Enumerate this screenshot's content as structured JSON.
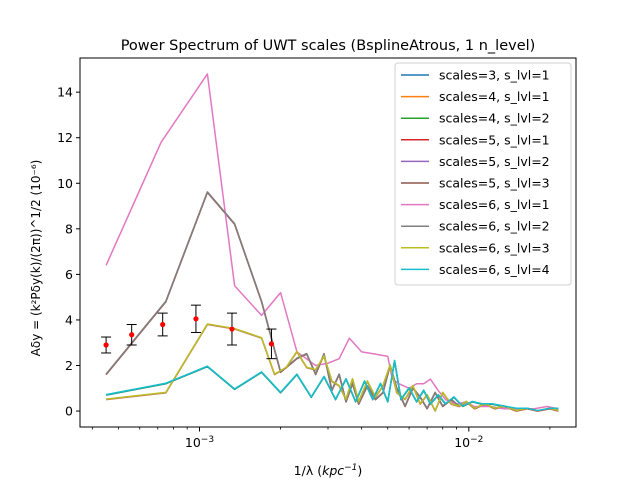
{
  "chart_data": {
    "type": "line",
    "title": "Power Spectrum of UWT scales (BsplineAtrous, 1 n_level)",
    "xlabel_main": "1/λ (",
    "xlabel_unit": "kpc",
    "xlabel_sup": "−1",
    "xlabel_close": ")",
    "ylabel": "Aδy = (k²Pδy(k)/(2π))^1/2 (10⁻⁶)",
    "xscale": "log",
    "xlim": [
      0.00036,
      0.025
    ],
    "ylim": [
      -0.7,
      15.5
    ],
    "yticks": [
      0,
      2,
      4,
      6,
      8,
      10,
      12,
      14
    ],
    "ytick_labels": [
      "0",
      "2",
      "4",
      "6",
      "8",
      "10",
      "12",
      "14"
    ],
    "xticks_major": [
      0.001,
      0.01
    ],
    "xtick_major_base": [
      "10",
      "10"
    ],
    "xtick_major_exp": [
      "−3",
      "−2"
    ],
    "xticks_minor": [
      0.0004,
      0.0005,
      0.0006,
      0.0007,
      0.0008,
      0.0009,
      0.002,
      0.003,
      0.004,
      0.005,
      0.006,
      0.007,
      0.008,
      0.009,
      0.02
    ],
    "legend_position": "top-right",
    "series": [
      {
        "name": "scales=3, s_lvl=1",
        "color": "#1f77b4",
        "group": "low"
      },
      {
        "name": "scales=4, s_lvl=1",
        "color": "#ff7f0e",
        "group": "mid"
      },
      {
        "name": "scales=4, s_lvl=2",
        "color": "#2ca02c",
        "group": "low"
      },
      {
        "name": "scales=5, s_lvl=1",
        "color": "#d62728",
        "group": "brown"
      },
      {
        "name": "scales=5, s_lvl=2",
        "color": "#9467bd",
        "group": "mid"
      },
      {
        "name": "scales=5, s_lvl=3",
        "color": "#8c564b",
        "group": "brown"
      },
      {
        "name": "scales=6, s_lvl=1",
        "color": "#e377c2",
        "group": "pink"
      },
      {
        "name": "scales=6, s_lvl=2",
        "color": "#7f7f7f",
        "group": "brown"
      },
      {
        "name": "scales=6, s_lvl=3",
        "color": "#bcbd22",
        "group": "mid"
      },
      {
        "name": "scales=6, s_lvl=4",
        "color": "#17becf",
        "group": "low"
      }
    ],
    "curves": {
      "pink": {
        "x": [
          0.00045,
          0.00072,
          0.00107,
          0.00135,
          0.0017,
          0.002,
          0.0023,
          0.0027,
          0.003,
          0.0033,
          0.0036,
          0.004,
          0.0045,
          0.005,
          0.0052,
          0.0055,
          0.006,
          0.0064,
          0.0068,
          0.0072,
          0.0077,
          0.0082,
          0.009,
          0.0097,
          0.0105,
          0.012,
          0.0135,
          0.015,
          0.0175,
          0.0195,
          0.0215
        ],
        "y": [
          6.4,
          11.8,
          14.8,
          5.5,
          4.2,
          5.2,
          2.6,
          2.0,
          2.1,
          2.3,
          3.2,
          2.6,
          2.5,
          2.4,
          1.4,
          1.2,
          1.0,
          1.2,
          1.2,
          1.4,
          0.9,
          0.5,
          0.3,
          0.4,
          0.2,
          0.2,
          0.1,
          0.1,
          0.1,
          0.2,
          0.1
        ]
      },
      "brown": {
        "x": [
          0.00045,
          0.00075,
          0.00107,
          0.00135,
          0.0017,
          0.002,
          0.0023,
          0.0025,
          0.0027,
          0.0029,
          0.0031,
          0.0033,
          0.0035,
          0.0037,
          0.0039,
          0.0042,
          0.0045,
          0.0048,
          0.0051,
          0.0054,
          0.0058,
          0.0062,
          0.0066,
          0.007,
          0.0075,
          0.008,
          0.0086,
          0.0092,
          0.0098,
          0.0105,
          0.0115,
          0.0125,
          0.0135,
          0.015,
          0.0165,
          0.018,
          0.02,
          0.0215
        ],
        "y": [
          1.6,
          4.8,
          9.6,
          8.2,
          4.8,
          1.7,
          2.3,
          2.5,
          1.6,
          2.5,
          0.9,
          1.6,
          0.4,
          1.2,
          0.3,
          1.1,
          0.5,
          0.8,
          2.0,
          1.0,
          0.2,
          1.0,
          0.6,
          0.1,
          0.8,
          0.2,
          0.5,
          0.2,
          0.4,
          0.1,
          0.3,
          0.1,
          0.2,
          0.0,
          0.1,
          0.0,
          0.1,
          0.0
        ]
      },
      "mid": {
        "x": [
          0.00045,
          0.00075,
          0.00107,
          0.00135,
          0.0017,
          0.0019,
          0.0021,
          0.0023,
          0.0025,
          0.0027,
          0.0029,
          0.0031,
          0.0033,
          0.0035,
          0.0037,
          0.0039,
          0.0042,
          0.0045,
          0.0048,
          0.0051,
          0.0054,
          0.0058,
          0.0062,
          0.0066,
          0.007,
          0.0075,
          0.008,
          0.0086,
          0.0092,
          0.0098,
          0.0105,
          0.0115,
          0.0125,
          0.0135,
          0.015,
          0.0165,
          0.018,
          0.02,
          0.0215
        ],
        "y": [
          0.5,
          0.8,
          3.8,
          3.6,
          3.2,
          1.6,
          1.9,
          2.6,
          1.9,
          1.8,
          2.4,
          1.3,
          1.1,
          0.5,
          1.4,
          0.4,
          1.3,
          0.6,
          1.1,
          2.0,
          0.8,
          0.5,
          1.1,
          0.3,
          0.7,
          0.0,
          0.8,
          0.3,
          0.2,
          0.4,
          0.1,
          0.3,
          0.1,
          0.2,
          0.0,
          0.1,
          0.0,
          0.1,
          0.0
        ]
      },
      "low": {
        "x": [
          0.00045,
          0.00075,
          0.00107,
          0.00135,
          0.0017,
          0.002,
          0.0023,
          0.0026,
          0.0029,
          0.0032,
          0.0035,
          0.0038,
          0.0041,
          0.0044,
          0.0047,
          0.005,
          0.0053,
          0.0056,
          0.006,
          0.0064,
          0.0068,
          0.0072,
          0.0077,
          0.0082,
          0.0088,
          0.0095,
          0.0103,
          0.0112,
          0.0122,
          0.0135,
          0.015,
          0.0165,
          0.018,
          0.02,
          0.0215
        ],
        "y": [
          0.7,
          1.2,
          1.95,
          0.95,
          1.7,
          0.8,
          1.6,
          0.6,
          1.5,
          0.5,
          1.4,
          0.4,
          1.3,
          0.5,
          1.2,
          0.4,
          2.2,
          0.5,
          1.0,
          0.4,
          0.9,
          0.3,
          0.7,
          0.3,
          0.6,
          0.2,
          0.4,
          0.3,
          0.3,
          0.2,
          0.1,
          0.1,
          0.0,
          0.1,
          0.1
        ]
      }
    },
    "errorbar_series": {
      "color": "#ff0000",
      "ecolor": "#000000",
      "x": [
        0.00045,
        0.00056,
        0.00073,
        0.00097,
        0.00132,
        0.00185
      ],
      "y": [
        2.9,
        3.35,
        3.8,
        4.05,
        3.6,
        2.95
      ],
      "yerr": [
        0.35,
        0.45,
        0.5,
        0.6,
        0.7,
        0.65
      ]
    }
  }
}
